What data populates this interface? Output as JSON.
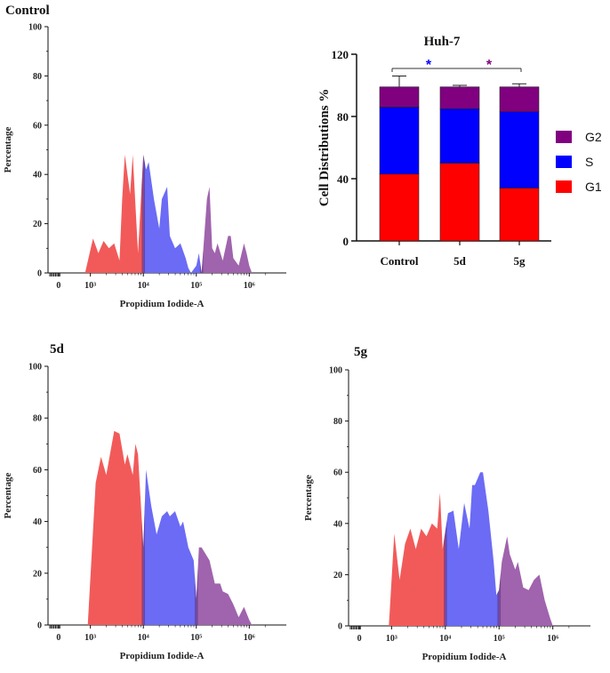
{
  "colors": {
    "g1": "#ff0000",
    "s": "#0000ff",
    "g2": "#800080",
    "hist_g1": "#f25a5a",
    "hist_s": "#6b6bf5",
    "hist_g2": "#a063ad"
  },
  "chart_data": [
    {
      "type": "area",
      "panel": "control",
      "title": "Control",
      "xlabel": "Propidium Iodide-A",
      "ylabel": "Percentage",
      "x_scale": "log",
      "x_ticks": [
        "0",
        "10³",
        "10⁴",
        "10⁵",
        "10⁶"
      ],
      "y_ticks": [
        "0",
        "20",
        "40",
        "60",
        "80",
        "100"
      ],
      "ylim": [
        0,
        100
      ],
      "gates": {
        "g1_s": 4.0,
        "s_g2": 5.1
      },
      "x": [
        2.9,
        3.05,
        3.15,
        3.25,
        3.35,
        3.45,
        3.55,
        3.6,
        3.65,
        3.75,
        3.8,
        3.9,
        4.0,
        4.05,
        4.1,
        4.2,
        4.3,
        4.35,
        4.45,
        4.5,
        4.6,
        4.7,
        4.8,
        4.85,
        4.9,
        5.0,
        5.05,
        5.1,
        5.2,
        5.25,
        5.3,
        5.35,
        5.4,
        5.5,
        5.6,
        5.65,
        5.7,
        5.8,
        5.9,
        5.95,
        6.0,
        6.05
      ],
      "y": [
        0,
        14,
        8,
        13,
        10,
        12,
        5,
        30,
        48,
        32,
        48,
        8,
        48,
        42,
        45,
        30,
        18,
        30,
        35,
        15,
        10,
        12,
        6,
        2,
        0,
        3,
        8,
        0,
        30,
        35,
        10,
        8,
        12,
        5,
        15,
        15,
        6,
        3,
        12,
        8,
        3,
        0
      ]
    },
    {
      "type": "bar",
      "panel": "huh7",
      "title": "Huh-7",
      "categories": [
        "Control",
        "5d",
        "5g"
      ],
      "stack_order": [
        "G1",
        "S",
        "G2"
      ],
      "series": [
        {
          "name": "G1",
          "values": [
            43,
            50,
            34
          ]
        },
        {
          "name": "S",
          "values": [
            43,
            35,
            49
          ]
        },
        {
          "name": "G2",
          "values": [
            13,
            14,
            16
          ]
        }
      ],
      "error": [
        7,
        1,
        2
      ],
      "ylabel": "Cell Distributions %",
      "xlabel": "",
      "ylim": [
        0,
        120
      ],
      "y_ticks": [
        "0",
        "40",
        "80",
        "120"
      ],
      "legend": [
        "G2",
        "S",
        "G1"
      ],
      "significance": [
        "*",
        "*"
      ]
    },
    {
      "type": "area",
      "panel": "5d",
      "title": "5d",
      "xlabel": "Propidium Iodide-A",
      "ylabel": "Percentage",
      "x_scale": "log",
      "x_ticks": [
        "0",
        "10³",
        "10⁴",
        "10⁵",
        "10⁶"
      ],
      "y_ticks": [
        "0",
        "20",
        "40",
        "60",
        "80",
        "100"
      ],
      "ylim": [
        0,
        100
      ],
      "gates": {
        "g1_s": 4.0,
        "s_g2": 5.0
      },
      "x": [
        2.95,
        3.1,
        3.2,
        3.3,
        3.45,
        3.55,
        3.65,
        3.7,
        3.8,
        3.85,
        3.9,
        4.0,
        4.05,
        4.15,
        4.25,
        4.35,
        4.45,
        4.5,
        4.6,
        4.7,
        4.75,
        4.85,
        4.95,
        5.0,
        5.05,
        5.1,
        5.25,
        5.35,
        5.45,
        5.5,
        5.6,
        5.7,
        5.8,
        5.9,
        6.0,
        6.05
      ],
      "y": [
        0,
        55,
        65,
        58,
        75,
        74,
        62,
        66,
        58,
        70,
        66,
        30,
        60,
        46,
        35,
        42,
        44,
        42,
        44,
        38,
        40,
        30,
        25,
        10,
        30,
        30,
        25,
        16,
        16,
        13,
        12,
        8,
        3,
        7,
        2,
        0
      ]
    },
    {
      "type": "area",
      "panel": "5g",
      "title": "5g",
      "xlabel": "Propidium Iodide-A",
      "ylabel": "Percentage",
      "x_scale": "log",
      "x_ticks": [
        "0",
        "10³",
        "10⁴",
        "10⁵",
        "10⁶"
      ],
      "y_ticks": [
        "0",
        "20",
        "40",
        "60",
        "80",
        "100"
      ],
      "ylim": [
        0,
        100
      ],
      "gates": {
        "g1_s": 4.0,
        "s_g2": 5.0
      },
      "x": [
        2.95,
        3.05,
        3.15,
        3.25,
        3.35,
        3.45,
        3.55,
        3.65,
        3.75,
        3.85,
        3.9,
        3.95,
        4.05,
        4.15,
        4.25,
        4.35,
        4.45,
        4.5,
        4.55,
        4.65,
        4.7,
        4.8,
        4.9,
        4.95,
        5.0,
        5.05,
        5.15,
        5.2,
        5.3,
        5.35,
        5.45,
        5.55,
        5.65,
        5.75,
        5.85,
        5.95,
        6.0
      ],
      "y": [
        0,
        36,
        18,
        32,
        38,
        30,
        38,
        35,
        40,
        38,
        52,
        30,
        44,
        45,
        30,
        48,
        38,
        55,
        55,
        60,
        60,
        45,
        25,
        12,
        14,
        25,
        35,
        28,
        22,
        25,
        15,
        14,
        18,
        20,
        10,
        3,
        0
      ]
    }
  ]
}
